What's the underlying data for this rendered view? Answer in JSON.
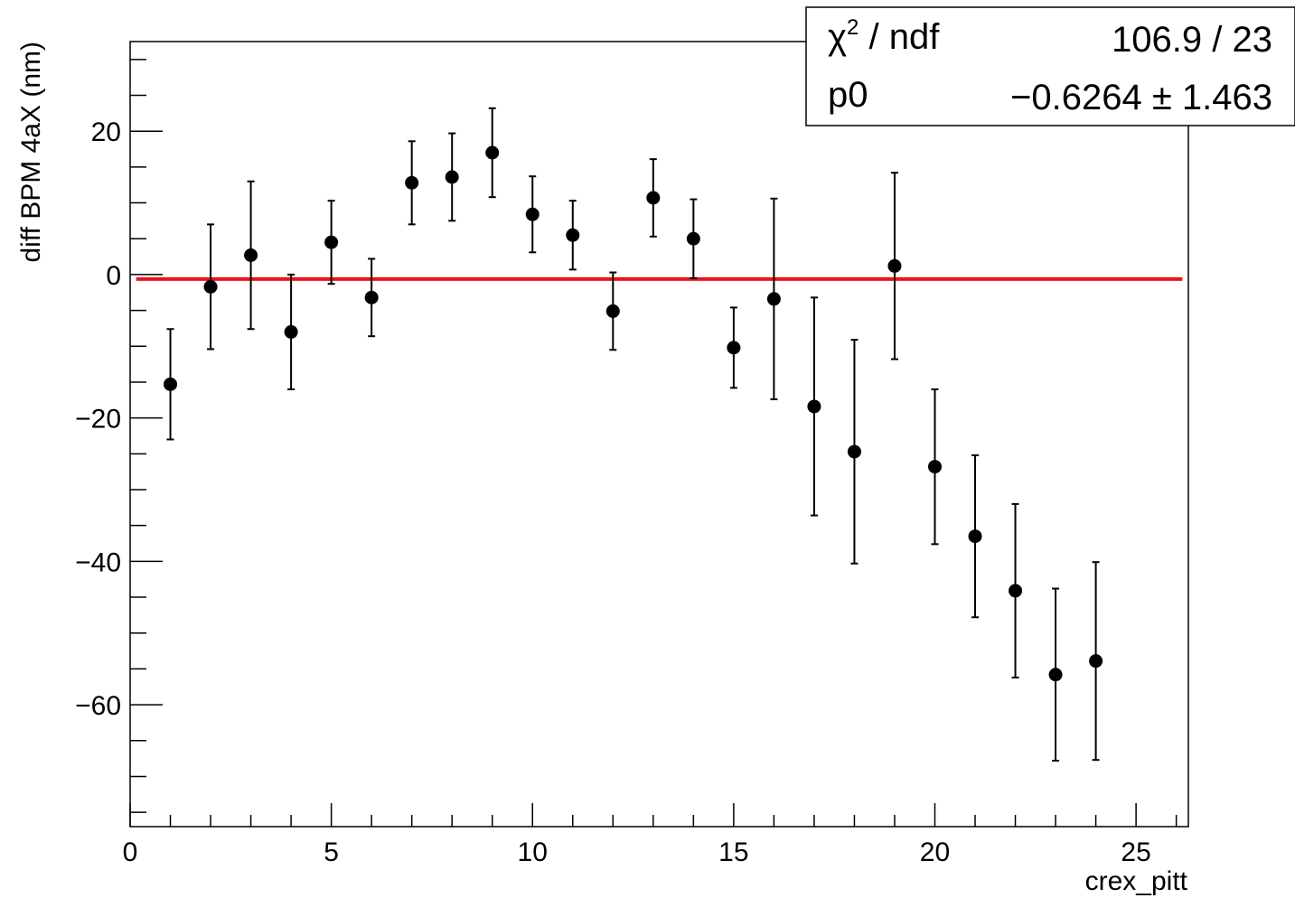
{
  "chart_data": {
    "type": "scatter",
    "xlabel": "crex_pitt",
    "ylabel": "diff BPM 4aX (nm)",
    "xlim": [
      0,
      26.3
    ],
    "ylim": [
      -77,
      32.5
    ],
    "x_ticks": [
      0,
      5,
      10,
      15,
      20,
      25
    ],
    "y_ticks": [
      20,
      0,
      -20,
      -40,
      -60
    ],
    "x_tick_labels": [
      "0",
      "5",
      "10",
      "15",
      "20",
      "25"
    ],
    "y_tick_labels": [
      "20",
      "0",
      "−20",
      "−40",
      "−60"
    ],
    "grid": false,
    "series": [
      {
        "x": [
          1,
          2,
          3,
          4,
          5,
          6,
          7,
          8,
          9,
          10,
          11,
          12,
          13,
          14,
          15,
          16,
          17,
          18,
          19,
          20,
          21,
          22,
          23,
          24
        ],
        "y": [
          -15.3,
          -1.7,
          2.7,
          -8.0,
          4.5,
          -3.2,
          12.8,
          13.6,
          17.0,
          8.4,
          5.5,
          -5.1,
          10.7,
          5.0,
          -10.2,
          -3.4,
          -18.4,
          -24.7,
          1.2,
          -26.8,
          -36.5,
          -44.1,
          -55.8,
          -53.9
        ],
        "err": [
          7.7,
          8.7,
          10.3,
          8.0,
          5.8,
          5.4,
          5.8,
          6.1,
          6.2,
          5.3,
          4.8,
          5.4,
          5.4,
          5.5,
          5.6,
          14.0,
          15.2,
          15.6,
          13.0,
          10.8,
          11.3,
          12.1,
          12.0,
          13.8
        ]
      }
    ],
    "fit": {
      "value": -0.6264,
      "x_start": 0.15,
      "x_end": 26.15,
      "color": "#e8141c"
    },
    "stats_box": {
      "rows": [
        {
          "label_sym": "χ",
          "label_sup": "2",
          "label_rest": " / ndf",
          "value": "106.9 / 23"
        },
        {
          "label": "p0",
          "value": "−0.6264 ± 1.463"
        }
      ]
    }
  }
}
